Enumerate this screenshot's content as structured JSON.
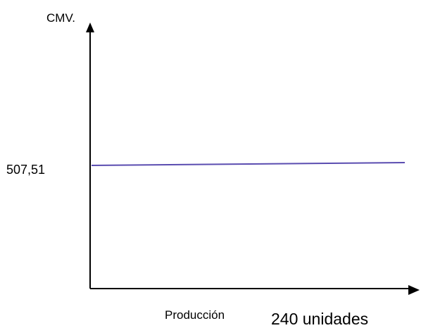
{
  "chart_data": {
    "type": "line",
    "ylabel": "CMV.",
    "xlabel": "Producción",
    "x_annotation": "240 unidades",
    "y_tick_label": "507,51",
    "series": [
      {
        "values": [
          507.51,
          507.51
        ]
      }
    ],
    "line_color": "#5a4cb0",
    "grid": false
  }
}
